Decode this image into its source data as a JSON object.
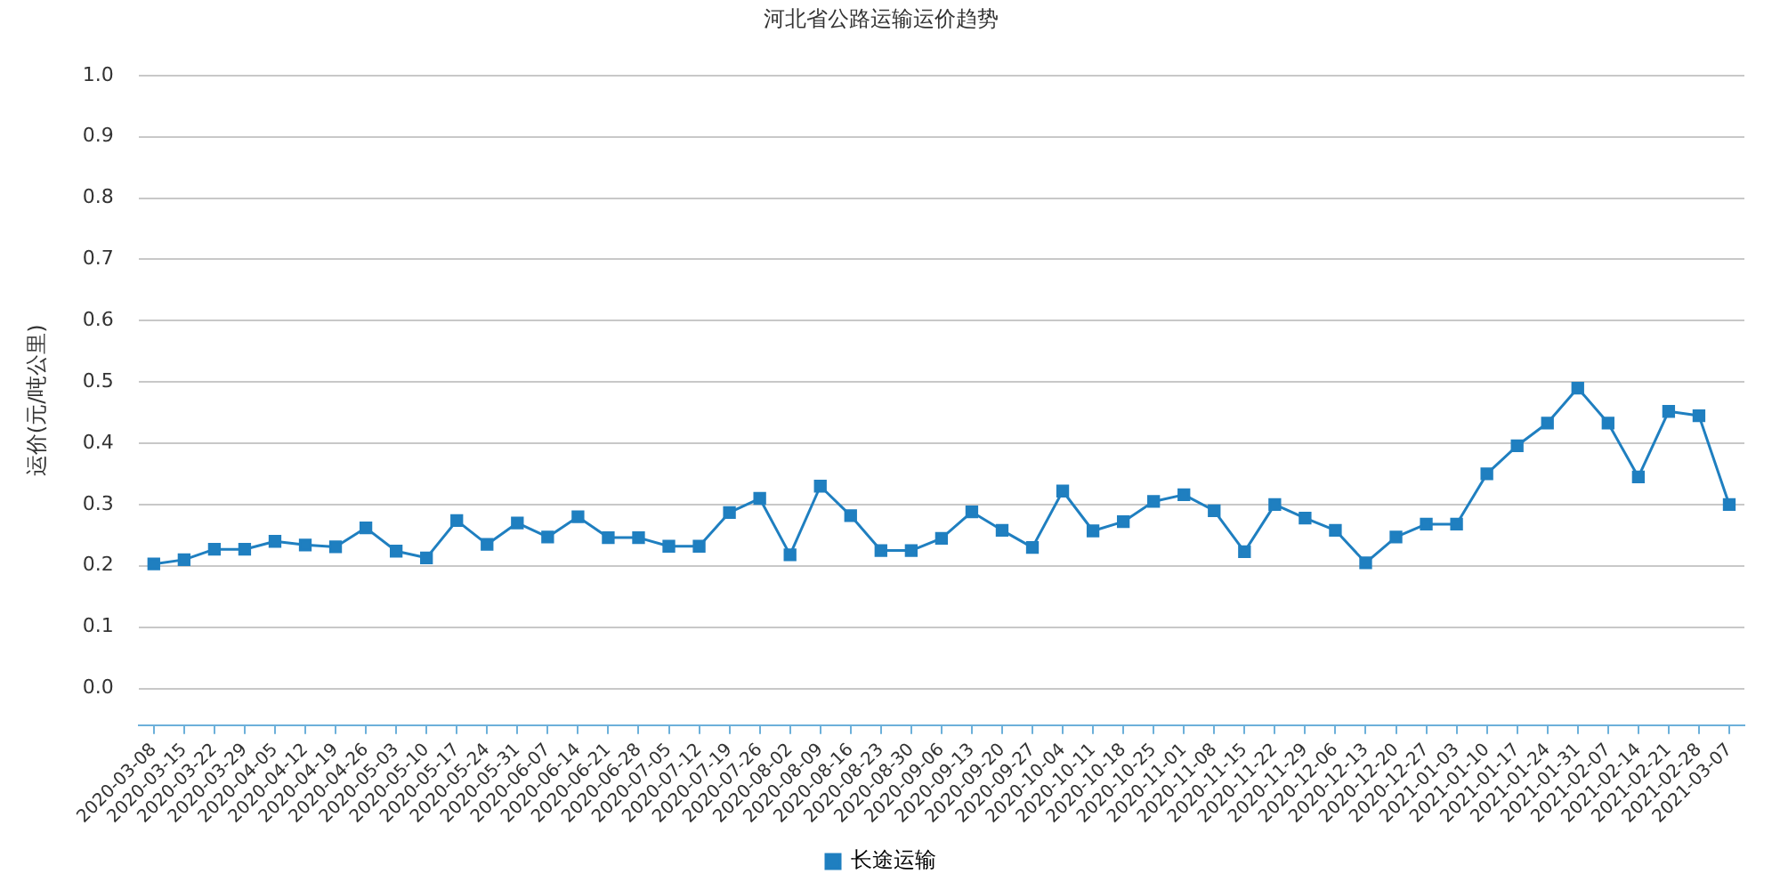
{
  "chart_data": {
    "type": "line",
    "title": "河北省公路运输运价趋势",
    "ylabel": "运价(元/吨公里)",
    "categories": [
      "2020-03-08",
      "2020-03-15",
      "2020-03-22",
      "2020-03-29",
      "2020-04-05",
      "2020-04-12",
      "2020-04-19",
      "2020-04-26",
      "2020-05-03",
      "2020-05-10",
      "2020-05-17",
      "2020-05-24",
      "2020-05-31",
      "2020-06-07",
      "2020-06-14",
      "2020-06-21",
      "2020-06-28",
      "2020-07-05",
      "2020-07-12",
      "2020-07-19",
      "2020-07-26",
      "2020-08-02",
      "2020-08-09",
      "2020-08-16",
      "2020-08-23",
      "2020-08-30",
      "2020-09-06",
      "2020-09-13",
      "2020-09-20",
      "2020-09-27",
      "2020-10-04",
      "2020-10-11",
      "2020-10-18",
      "2020-10-25",
      "2020-11-01",
      "2020-11-08",
      "2020-11-15",
      "2020-11-22",
      "2020-11-29",
      "2020-12-06",
      "2020-12-13",
      "2020-12-20",
      "2020-12-27",
      "2021-01-03",
      "2021-01-10",
      "2021-01-17",
      "2021-01-24",
      "2021-01-31",
      "2021-02-07",
      "2021-02-14",
      "2021-02-21",
      "2021-02-28",
      "2021-03-07"
    ],
    "series": [
      {
        "name": "长途运输",
        "color": "#1f7fc0",
        "values": [
          0.203,
          0.21,
          0.227,
          0.227,
          0.24,
          0.234,
          0.231,
          0.262,
          0.224,
          0.213,
          0.274,
          0.235,
          0.27,
          0.247,
          0.28,
          0.246,
          0.246,
          0.232,
          0.232,
          0.287,
          0.31,
          0.218,
          0.33,
          0.282,
          0.225,
          0.225,
          0.245,
          0.288,
          0.258,
          0.23,
          0.322,
          0.257,
          0.272,
          0.305,
          0.316,
          0.29,
          0.223,
          0.3,
          0.278,
          0.258,
          0.205,
          0.247,
          0.268,
          0.268,
          0.35,
          0.396,
          0.433,
          0.49,
          0.433,
          0.345,
          0.452,
          0.445,
          0.3
        ]
      }
    ],
    "ylim": [
      -0.06,
      1.0
    ],
    "yticks": [
      {
        "value": 0,
        "label": "0.0"
      },
      0.1,
      0.2,
      0.3,
      0.4,
      0.5,
      0.6,
      0.7,
      0.8,
      0.9,
      {
        "value": 1,
        "label": "1.0"
      }
    ],
    "grid": "y",
    "legend": "bottom",
    "marker": "square",
    "line_style": "solid"
  }
}
